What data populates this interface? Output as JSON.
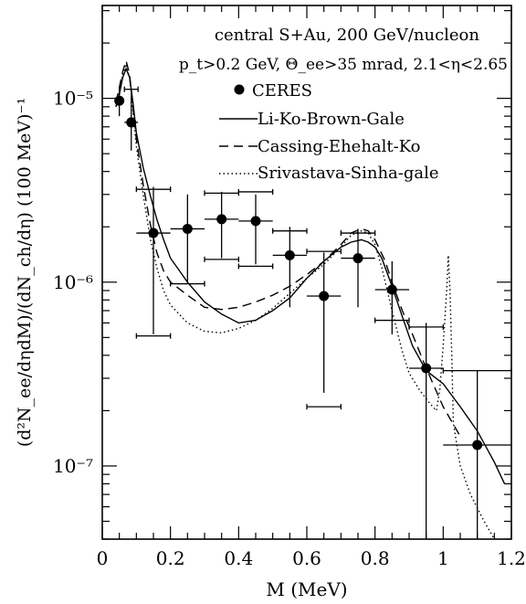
{
  "chart_data": {
    "type": "scatter",
    "title_lines": [
      "central S+Au, 200 GeV/nucleon",
      "p_t>0.2 GeV, Θ_ee>35 mrad, 2.1<η<2.65"
    ],
    "xlabel": "M (MeV)",
    "ylabel": "(d²N_ee/dηdM)/(dN_ch/dη)   (100 MeV)⁻¹",
    "xlim": [
      0,
      1.2
    ],
    "ylim": [
      4e-08,
      3.2e-05
    ],
    "yscale": "log",
    "x_ticks": [
      0,
      0.2,
      0.4,
      0.6,
      0.8,
      1,
      1.2
    ],
    "x_tick_labels": [
      "0",
      "0.2",
      "0.4",
      "0.6",
      "0.8",
      "1",
      "1.2"
    ],
    "y_ticks": [
      1e-07,
      1e-06,
      1e-05
    ],
    "y_tick_labels": [
      "10⁻⁷",
      "10⁻⁶",
      "10⁻⁵"
    ],
    "legend": {
      "placement": "top-right",
      "entries": [
        {
          "label": "CERES",
          "style": "marker"
        },
        {
          "label": "Li-Ko-Brown-Gale",
          "style": "solid"
        },
        {
          "label": "Cassing-Ehehalt-Ko",
          "style": "dashed"
        },
        {
          "label": "Srivastava-Sinha-gale",
          "style": "dotted"
        }
      ]
    },
    "data_points": {
      "name": "CERES",
      "points": [
        {
          "x": 0.05,
          "y": 9.7e-06,
          "xerr": 0.0,
          "ylo": 8e-06,
          "yhi": 1.15e-05
        },
        {
          "x": 0.085,
          "y": 7.4e-06,
          "xerr": 0.02,
          "ylo": 5.2e-06,
          "yhi": 1.05e-05
        },
        {
          "x": 0.15,
          "y": 1.85e-06,
          "xerr": 0.05,
          "ylo": 5.2e-07,
          "yhi": 3.3e-06
        },
        {
          "x": 0.25,
          "y": 1.95e-06,
          "xerr": 0.05,
          "ylo": 1e-06,
          "yhi": 3e-06
        },
        {
          "x": 0.35,
          "y": 2.2e-06,
          "xerr": 0.05,
          "ylo": 1.35e-06,
          "yhi": 3.1e-06
        },
        {
          "x": 0.45,
          "y": 2.15e-06,
          "xerr": 0.05,
          "ylo": 1.25e-06,
          "yhi": 3e-06
        },
        {
          "x": 0.55,
          "y": 1.4e-06,
          "xerr": 0.05,
          "ylo": 7.3e-07,
          "yhi": 2e-06
        },
        {
          "x": 0.65,
          "y": 8.4e-07,
          "xerr": 0.05,
          "ylo": 2.5e-07,
          "yhi": 1.45e-06
        },
        {
          "x": 0.75,
          "y": 1.35e-06,
          "xerr": 0.05,
          "ylo": 7.3e-07,
          "yhi": 1.95e-06
        },
        {
          "x": 0.85,
          "y": 9.1e-07,
          "xerr": 0.05,
          "ylo": 5.2e-07,
          "yhi": 1.3e-06
        },
        {
          "x": 0.95,
          "y": 3.4e-07,
          "xerr": 0.05,
          "ylo": 4e-08,
          "yhi": 6e-07
        },
        {
          "x": 1.1,
          "y": 1.3e-07,
          "xerr": 0.1,
          "ylo": 4e-08,
          "yhi": 3.3e-07
        }
      ],
      "sys_error_bars": [
        {
          "x": 0.085,
          "y": 1.12e-05,
          "xerr": 0.02
        },
        {
          "x": 0.15,
          "y": 3.2e-06,
          "xerr": 0.05
        },
        {
          "x": 0.15,
          "y": 5.1e-07,
          "xerr": 0.05
        },
        {
          "x": 0.25,
          "y": 9.8e-07,
          "xerr": 0.05
        },
        {
          "x": 0.35,
          "y": 3.05e-06,
          "xerr": 0.05
        },
        {
          "x": 0.35,
          "y": 1.33e-06,
          "xerr": 0.05
        },
        {
          "x": 0.45,
          "y": 3.1e-06,
          "xerr": 0.05
        },
        {
          "x": 0.45,
          "y": 1.22e-06,
          "xerr": 0.05
        },
        {
          "x": 0.55,
          "y": 1.9e-06,
          "xerr": 0.05
        },
        {
          "x": 0.65,
          "y": 1.47e-06,
          "xerr": 0.05
        },
        {
          "x": 0.65,
          "y": 2.1e-07,
          "xerr": 0.05
        },
        {
          "x": 0.75,
          "y": 1.85e-06,
          "xerr": 0.05
        },
        {
          "x": 0.85,
          "y": 6.2e-07,
          "xerr": 0.05
        },
        {
          "x": 0.95,
          "y": 5.7e-07,
          "xerr": 0.05
        },
        {
          "x": 1.1,
          "y": 3.3e-07,
          "xerr": 0.1
        }
      ]
    },
    "series": [
      {
        "name": "Li-Ko-Brown-Gale",
        "style": "solid",
        "x": [
          0.04,
          0.05,
          0.06,
          0.07,
          0.08,
          0.09,
          0.1,
          0.12,
          0.14,
          0.16,
          0.18,
          0.2,
          0.22,
          0.25,
          0.3,
          0.35,
          0.4,
          0.45,
          0.5,
          0.55,
          0.6,
          0.65,
          0.7,
          0.73,
          0.76,
          0.78,
          0.8,
          0.82,
          0.85,
          0.88,
          0.91,
          0.95,
          1.0,
          1.05,
          1.1,
          1.15,
          1.18
        ],
        "y": [
          9e-06,
          1.05e-05,
          1.3e-05,
          1.45e-05,
          1.3e-05,
          9.5e-06,
          6.5e-06,
          4.2e-06,
          3e-06,
          2.2e-06,
          1.7e-06,
          1.35e-06,
          1.2e-06,
          1e-06,
          7.8e-07,
          6.7e-07,
          6e-07,
          6.2e-07,
          7e-07,
          8.2e-07,
          1.05e-06,
          1.3e-06,
          1.55e-06,
          1.65e-06,
          1.7e-06,
          1.65e-06,
          1.55e-06,
          1.35e-06,
          9.5e-07,
          6.5e-07,
          4.5e-07,
          3.3e-07,
          2.8e-07,
          2.1e-07,
          1.55e-07,
          1.05e-07,
          8e-08
        ]
      },
      {
        "name": "Cassing-Ehehalt-Ko",
        "style": "dashed",
        "x": [
          0.04,
          0.05,
          0.06,
          0.07,
          0.08,
          0.09,
          0.1,
          0.12,
          0.14,
          0.16,
          0.18,
          0.2,
          0.25,
          0.3,
          0.35,
          0.4,
          0.45,
          0.5,
          0.55,
          0.6,
          0.65,
          0.7,
          0.73,
          0.76,
          0.78,
          0.8,
          0.83,
          0.85,
          0.88,
          0.91,
          0.95,
          1.0,
          1.05
        ],
        "y": [
          9.5e-06,
          1.15e-05,
          1.4e-05,
          1.6e-05,
          1.35e-05,
          9e-06,
          6e-06,
          3.4e-06,
          2.1e-06,
          1.45e-06,
          1.15e-06,
          1e-06,
          8.5e-07,
          7.3e-07,
          7.1e-07,
          7.3e-07,
          7.8e-07,
          8.5e-07,
          9.5e-07,
          1.1e-06,
          1.3e-06,
          1.6e-06,
          1.85e-06,
          1.95e-06,
          1.9e-06,
          1.7e-06,
          1.3e-06,
          1e-06,
          7e-07,
          5.2e-07,
          3.4e-07,
          2.1e-07,
          1.45e-07
        ]
      },
      {
        "name": "Srivastava-Sinha-gale",
        "style": "dotted",
        "x": [
          0.04,
          0.05,
          0.06,
          0.07,
          0.08,
          0.09,
          0.1,
          0.12,
          0.14,
          0.16,
          0.18,
          0.2,
          0.25,
          0.3,
          0.35,
          0.4,
          0.45,
          0.5,
          0.55,
          0.6,
          0.65,
          0.7,
          0.73,
          0.76,
          0.78,
          0.8,
          0.82,
          0.85,
          0.88,
          0.9,
          0.93,
          0.96,
          0.98,
          0.99,
          1.0,
          1.01,
          1.015,
          1.02,
          1.025,
          1.03,
          1.05,
          1.08,
          1.12,
          1.15
        ],
        "y": [
          9e-06,
          1.1e-05,
          1.35e-05,
          1.5e-05,
          1.3e-05,
          8.5e-06,
          5.5e-06,
          3e-06,
          1.75e-06,
          1.2e-06,
          9e-07,
          7.5e-07,
          6e-07,
          5.4e-07,
          5.3e-07,
          5.6e-07,
          6.2e-07,
          7.2e-07,
          8.7e-07,
          1.05e-06,
          1.25e-06,
          1.55e-06,
          1.8e-06,
          1.9e-06,
          1.85e-06,
          1.6e-06,
          1.2e-06,
          7e-07,
          4.2e-07,
          3.2e-07,
          2.6e-07,
          2.2e-07,
          2e-07,
          2.6e-07,
          4.5e-07,
          9e-07,
          1.4e-06,
          9e-07,
          4e-07,
          1.7e-07,
          1e-07,
          7e-08,
          5e-08,
          4e-08
        ]
      }
    ]
  }
}
